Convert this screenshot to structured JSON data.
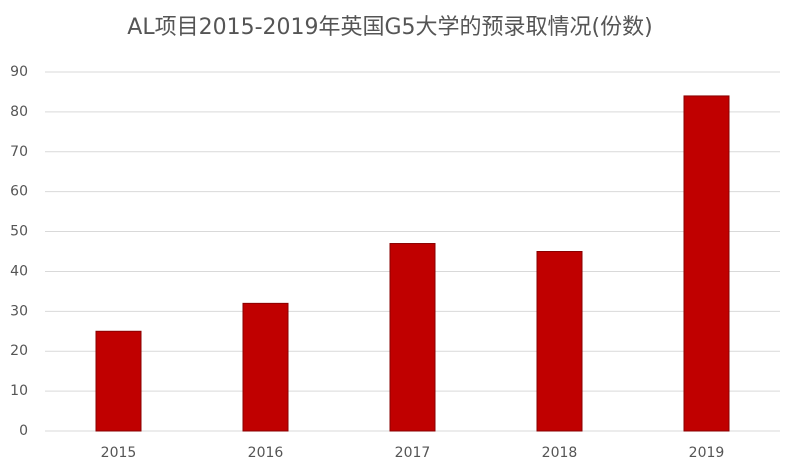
{
  "chart_data": {
    "type": "bar",
    "title": "AL项目2015-2019年英国G5大学的预录取情况(份数)",
    "categories": [
      "2015",
      "2016",
      "2017",
      "2018",
      "2019"
    ],
    "values": [
      25,
      32,
      47,
      45,
      84
    ],
    "color": "#c00000",
    "ylim": [
      0,
      90
    ],
    "yticks": [
      0,
      10,
      20,
      30,
      40,
      50,
      60,
      70,
      80,
      90
    ],
    "grid": true
  }
}
